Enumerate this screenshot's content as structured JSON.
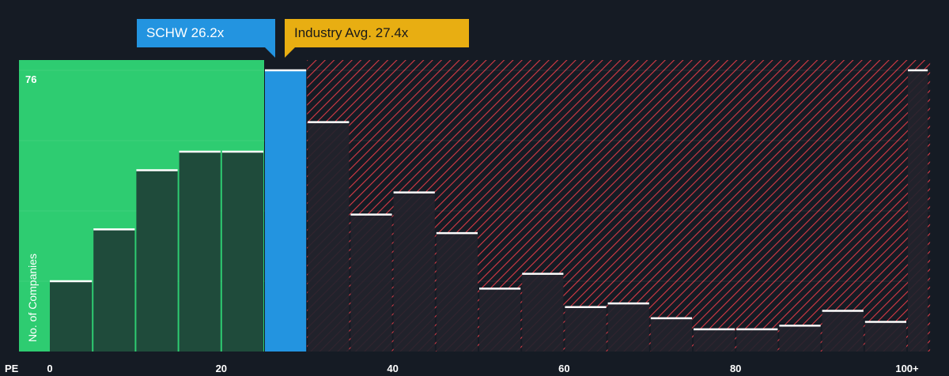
{
  "chart_data": {
    "type": "bar",
    "xlabel": "PE",
    "ylabel": "No. of Companies",
    "x_ticks": [
      "0",
      "20",
      "40",
      "60",
      "80",
      "100+"
    ],
    "x_tick_values": [
      0,
      20,
      40,
      60,
      80,
      100
    ],
    "xlim": [
      0,
      102.5
    ],
    "ylim": [
      0,
      76
    ],
    "y_max_label": "76",
    "bins": [
      {
        "start": 0,
        "end": 5,
        "value": 19
      },
      {
        "start": 5,
        "end": 10,
        "value": 33
      },
      {
        "start": 10,
        "end": 15,
        "value": 49
      },
      {
        "start": 15,
        "end": 20,
        "value": 54
      },
      {
        "start": 20,
        "end": 25,
        "value": 54
      },
      {
        "start": 25,
        "end": 30,
        "value": 76
      },
      {
        "start": 30,
        "end": 35,
        "value": 62
      },
      {
        "start": 35,
        "end": 40,
        "value": 37
      },
      {
        "start": 40,
        "end": 45,
        "value": 43
      },
      {
        "start": 45,
        "end": 50,
        "value": 32
      },
      {
        "start": 50,
        "end": 55,
        "value": 17
      },
      {
        "start": 55,
        "end": 60,
        "value": 21
      },
      {
        "start": 60,
        "end": 65,
        "value": 12
      },
      {
        "start": 65,
        "end": 70,
        "value": 13
      },
      {
        "start": 70,
        "end": 75,
        "value": 9
      },
      {
        "start": 75,
        "end": 80,
        "value": 6
      },
      {
        "start": 80,
        "end": 85,
        "value": 6
      },
      {
        "start": 85,
        "end": 90,
        "value": 7
      },
      {
        "start": 90,
        "end": 95,
        "value": 11
      },
      {
        "start": 95,
        "end": 100,
        "value": 8
      },
      {
        "start": 100,
        "end": 102.5,
        "value": 76
      }
    ],
    "company": {
      "label": "SCHW 26.2x",
      "value": 26.2,
      "bin_index": 5
    },
    "industry": {
      "label": "Industry Avg. 27.4x",
      "value": 27.4
    },
    "colors": {
      "background": "#151b24",
      "undervalued_region": "#2ecc71",
      "undervalued_bar": "#1f4b3b",
      "company_bar": "#2394e0",
      "overvalued_bar": "#23232d",
      "hatch": "#e0404a",
      "bar_top": "#ffffff",
      "industry": "#e8ae12"
    }
  }
}
